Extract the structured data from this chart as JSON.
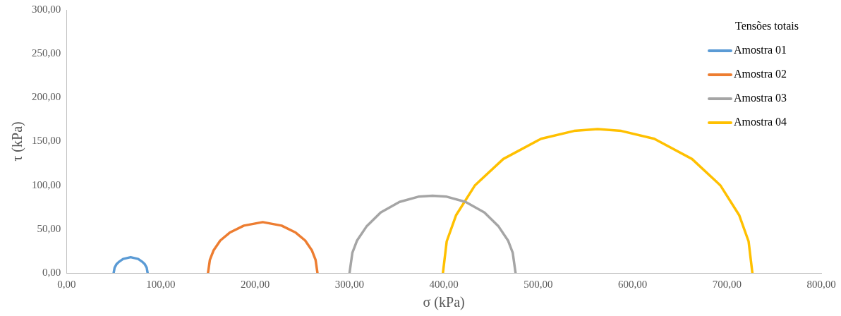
{
  "chart_data": {
    "type": "line",
    "xlabel": "σ (kPa)",
    "ylabel": "τ (kPa)",
    "legend_title": "Tensões totais",
    "legend": "top right",
    "grid": false,
    "marker": "none",
    "line_style": "solid",
    "xlim": [
      0,
      800
    ],
    "ylim": [
      0,
      300
    ],
    "xticks": [
      {
        "value": 0,
        "label": "0,00"
      },
      {
        "value": 100,
        "label": "100,00"
      },
      {
        "value": 200,
        "label": "200,00"
      },
      {
        "value": 300,
        "label": "300,00"
      },
      {
        "value": 400,
        "label": "400,00"
      },
      {
        "value": 500,
        "label": "500,00"
      },
      {
        "value": 600,
        "label": "600,00"
      },
      {
        "value": 700,
        "label": "700,00"
      },
      {
        "value": 800,
        "label": "800,00"
      }
    ],
    "yticks": [
      {
        "value": 0,
        "label": "0,00"
      },
      {
        "value": 50,
        "label": "50,00"
      },
      {
        "value": 100,
        "label": "100,00"
      },
      {
        "value": 150,
        "label": "150,00"
      },
      {
        "value": 200,
        "label": "200,00"
      },
      {
        "value": 250,
        "label": "250,00"
      },
      {
        "value": 300,
        "label": "300,00"
      }
    ],
    "series": [
      {
        "name": "Amostra 01",
        "color": "#5b9bd5",
        "x": [
          50,
          51,
          53,
          56,
          60,
          64,
          68,
          72,
          76,
          80,
          83,
          85,
          86
        ],
        "values": [
          0,
          6,
          10,
          13,
          16,
          17,
          18,
          17,
          16,
          13,
          10,
          6,
          0
        ]
      },
      {
        "name": "Amostra 02",
        "color": "#ed7d31",
        "x": [
          150,
          152,
          156,
          163,
          173,
          188,
          208,
          228,
          243,
          253,
          260,
          264,
          266
        ],
        "values": [
          0,
          15,
          26,
          37,
          46,
          54,
          58,
          54,
          46,
          37,
          26,
          15,
          0
        ]
      },
      {
        "name": "Amostra 03",
        "color": "#a5a5a5",
        "x": [
          300,
          303,
          308,
          318,
          333,
          353,
          373,
          388,
          403,
          423,
          443,
          458,
          468,
          473,
          476
        ],
        "values": [
          0,
          23,
          37,
          53,
          69,
          81,
          87,
          88,
          87,
          81,
          69,
          53,
          37,
          23,
          0
        ]
      },
      {
        "name": "Amostra 04",
        "color": "#ffc000",
        "x": [
          399,
          403,
          413,
          433,
          463,
          503,
          538,
          563,
          588,
          623,
          663,
          693,
          713,
          723,
          727
        ],
        "values": [
          0,
          36,
          66,
          100,
          130,
          153,
          162,
          164,
          162,
          153,
          130,
          100,
          66,
          36,
          0
        ]
      }
    ]
  }
}
